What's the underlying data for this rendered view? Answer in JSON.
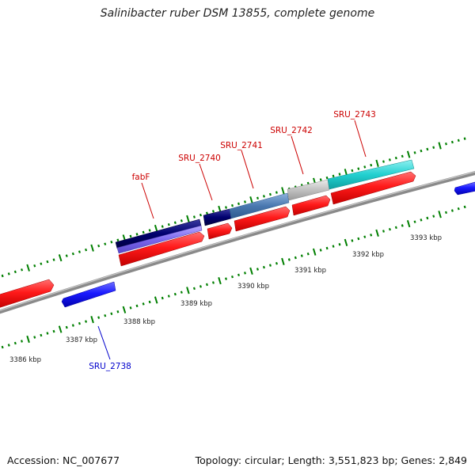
{
  "title": "Salinibacter ruber DSM 13855, complete genome",
  "footer": {
    "accession": "Accession: NC_007677",
    "topology": "Topology: circular; Length: 3,551,823 bp; Genes: 2,849"
  },
  "colors": {
    "backbone": "#888888",
    "cds": "#ff1a1a",
    "blue_gene": "#1a1aff",
    "ticks": "#007f00",
    "label_red": "#cc0000",
    "label_blue": "#0000cc",
    "fabF_dark": "#00006e",
    "fabF_light": "#7b68ee",
    "sru2740": "#000070",
    "sru2741": "#4a78b0",
    "sru2742": "#c0c0c0",
    "sru2743": "#22d0d0"
  },
  "kbp_labels": [
    "3386 kbp",
    "3387 kbp",
    "3388 kbp",
    "3389 kbp",
    "3390 kbp",
    "3391 kbp",
    "3392 kbp",
    "3393 kbp"
  ],
  "gene_labels": [
    "fabF",
    "SRU_2740",
    "SRU_2741",
    "SRU_2742",
    "SRU_2743",
    "SRU_2738"
  ]
}
